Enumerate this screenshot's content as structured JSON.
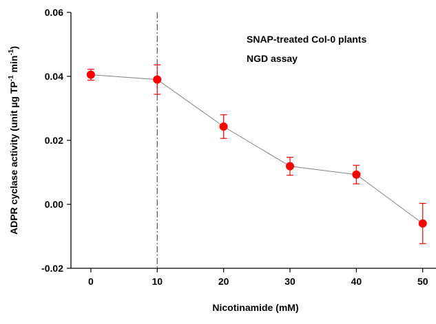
{
  "chart_data": {
    "type": "line",
    "title": "",
    "xlabel": "Nicotinamide (mM)",
    "ylabel": {
      "main": "ADPR cyclase activity (unit µg TP",
      "sup1": "-1",
      "mid": " min",
      "sup2": "-1",
      "end": ")"
    },
    "xlim": [
      -3,
      52
    ],
    "ylim": [
      -0.02,
      0.06
    ],
    "x_ticks": [
      0,
      10,
      20,
      30,
      40,
      50
    ],
    "x_tick_labels": [
      "0",
      "10",
      "20",
      "30",
      "40",
      "50"
    ],
    "y_ticks": [
      -0.02,
      0.0,
      0.02,
      0.04,
      0.06
    ],
    "y_tick_labels": [
      "-0.02",
      "0.00",
      "0.02",
      "0.04",
      "0.06"
    ],
    "series": [
      {
        "x": [
          0,
          10,
          20,
          30,
          40,
          50
        ],
        "y": [
          0.0405,
          0.039,
          0.0243,
          0.0119,
          0.0093,
          -0.006
        ],
        "error": [
          0.0017,
          0.0046,
          0.0037,
          0.0028,
          0.0029,
          0.0063
        ],
        "marker_color": "#ff0000",
        "line_color": "#808080"
      }
    ],
    "reference_line": {
      "x": 10,
      "style": "dash-dot",
      "color": "#555555"
    },
    "annotations": [
      "SNAP-treated Col-0 plants",
      "NGD assay"
    ],
    "grid": false
  }
}
